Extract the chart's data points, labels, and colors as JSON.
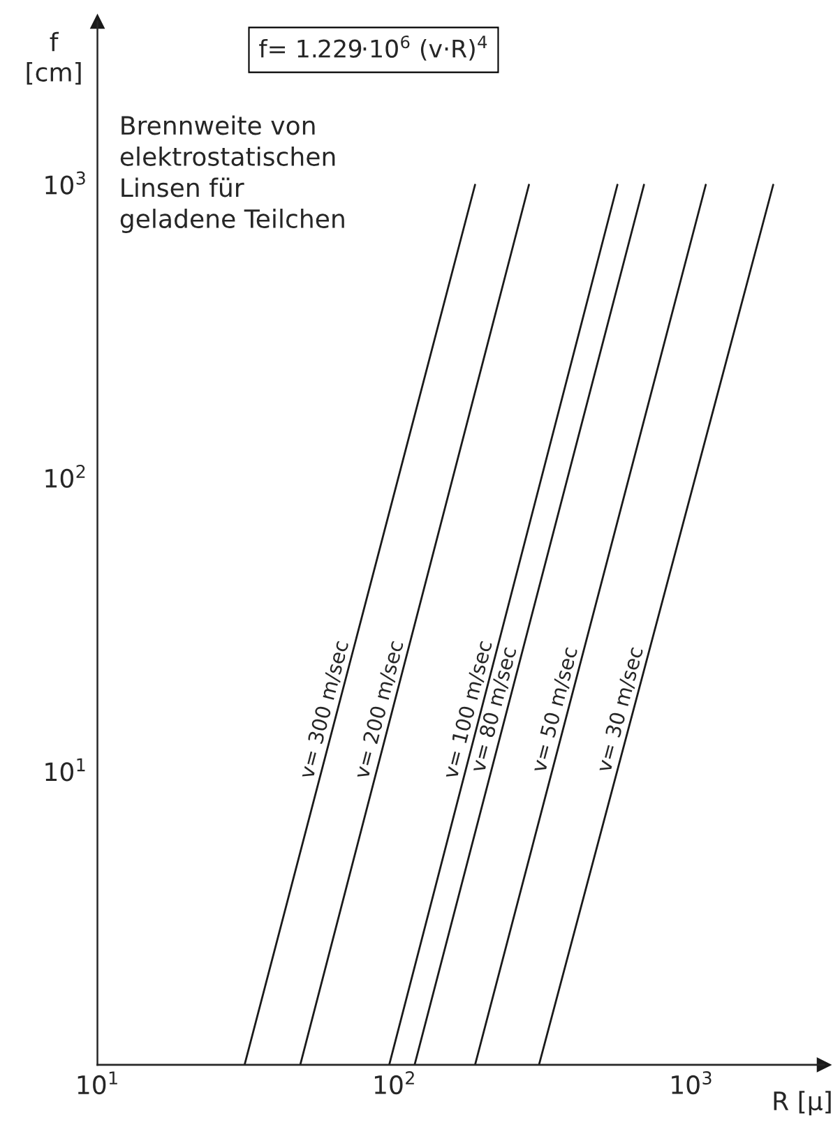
{
  "chart_data": {
    "type": "line",
    "xlabel": "R [μ]",
    "ylabel": "f\n[cm]",
    "annotations": [
      "f= 1.229·10$^{6}$ (v·R)$^{4}$",
      "Brennweite von\nelektrostatischen\nLinsen für\ngeladene Teilchen"
    ],
    "log": "xy",
    "grid": false,
    "legend": false,
    "marker": "none",
    "line_style": "solid",
    "xlim": [
      10,
      2800
    ],
    "ylim": [
      1,
      3600
    ],
    "xticks": [
      {
        "value": 10,
        "label": "10$^{1}$"
      },
      {
        "value": 100,
        "label": "10$^{2}$"
      },
      {
        "value": 1000,
        "label": "10$^{3}$"
      }
    ],
    "yticks": [
      {
        "value": 10,
        "label": "10$^{1}$"
      },
      {
        "value": 100,
        "label": "10$^{2}$"
      },
      {
        "value": 1000,
        "label": "10$^{3}$"
      }
    ],
    "series": [
      {
        "name": "v= 300 m/sec",
        "color": "#1a1a1a",
        "x": [
          31.3,
          187
        ],
        "values": [
          1,
          1000
        ]
      },
      {
        "name": "v= 200 m/sec",
        "color": "#1a1a1a",
        "x": [
          48.2,
          284
        ],
        "values": [
          1,
          1000
        ]
      },
      {
        "name": "v= 100 m/sec",
        "color": "#1a1a1a",
        "x": [
          96.1,
          564
        ],
        "values": [
          1,
          1000
        ]
      },
      {
        "name": "v= 80 m/sec",
        "color": "#1a1a1a",
        "x": [
          117,
          693
        ],
        "values": [
          1,
          1000
        ]
      },
      {
        "name": "v= 50 m/sec",
        "color": "#1a1a1a",
        "x": [
          187,
          1119
        ],
        "values": [
          1,
          1000
        ]
      },
      {
        "name": "v= 30 m/sec",
        "color": "#1a1a1a",
        "x": [
          307,
          1888
        ],
        "values": [
          1,
          1000
        ]
      }
    ]
  }
}
